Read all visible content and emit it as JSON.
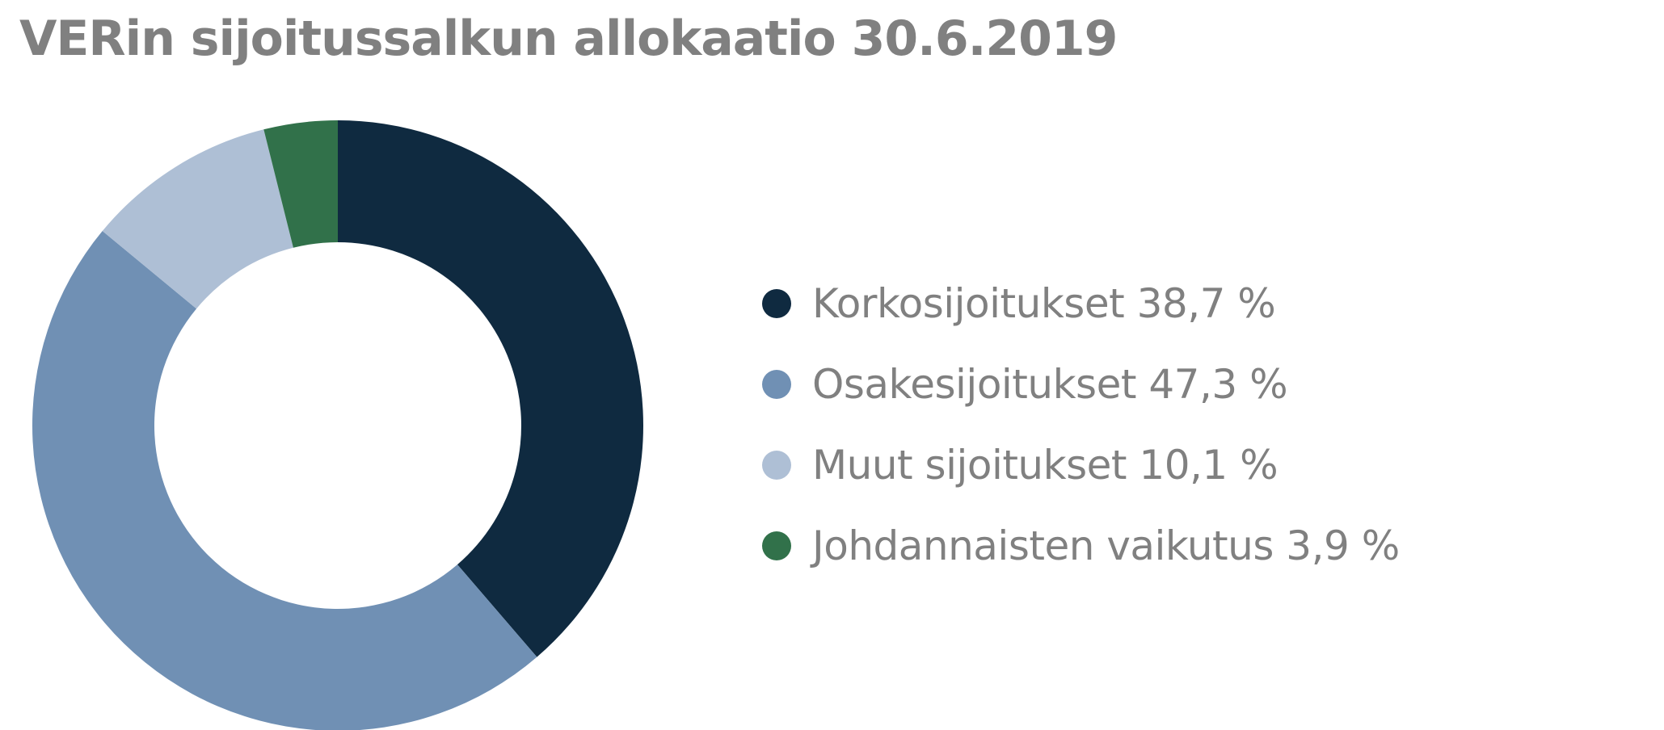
{
  "chart_data": {
    "type": "pie",
    "variant": "donut",
    "title": "VERin sijoitussalkun allokaatio 30.6.2019",
    "categories": [
      "Korkosijoitukset",
      "Osakesijoitukset",
      "Muut sijoitukset",
      "Johdannaisten vaikutus"
    ],
    "values": [
      38.7,
      47.3,
      10.1,
      3.9
    ],
    "unit": "%",
    "colors": [
      "#0f2a40",
      "#7090b4",
      "#aebfd5",
      "#31714a"
    ],
    "legend_position": "right",
    "legend_labels": [
      "Korkosijoitukset 38,7 %",
      "Osakesijoitukset 47,3 %",
      "Muut sijoitukset 10,1 %",
      "Johdannaisten vaikutus 3,9 %"
    ]
  }
}
